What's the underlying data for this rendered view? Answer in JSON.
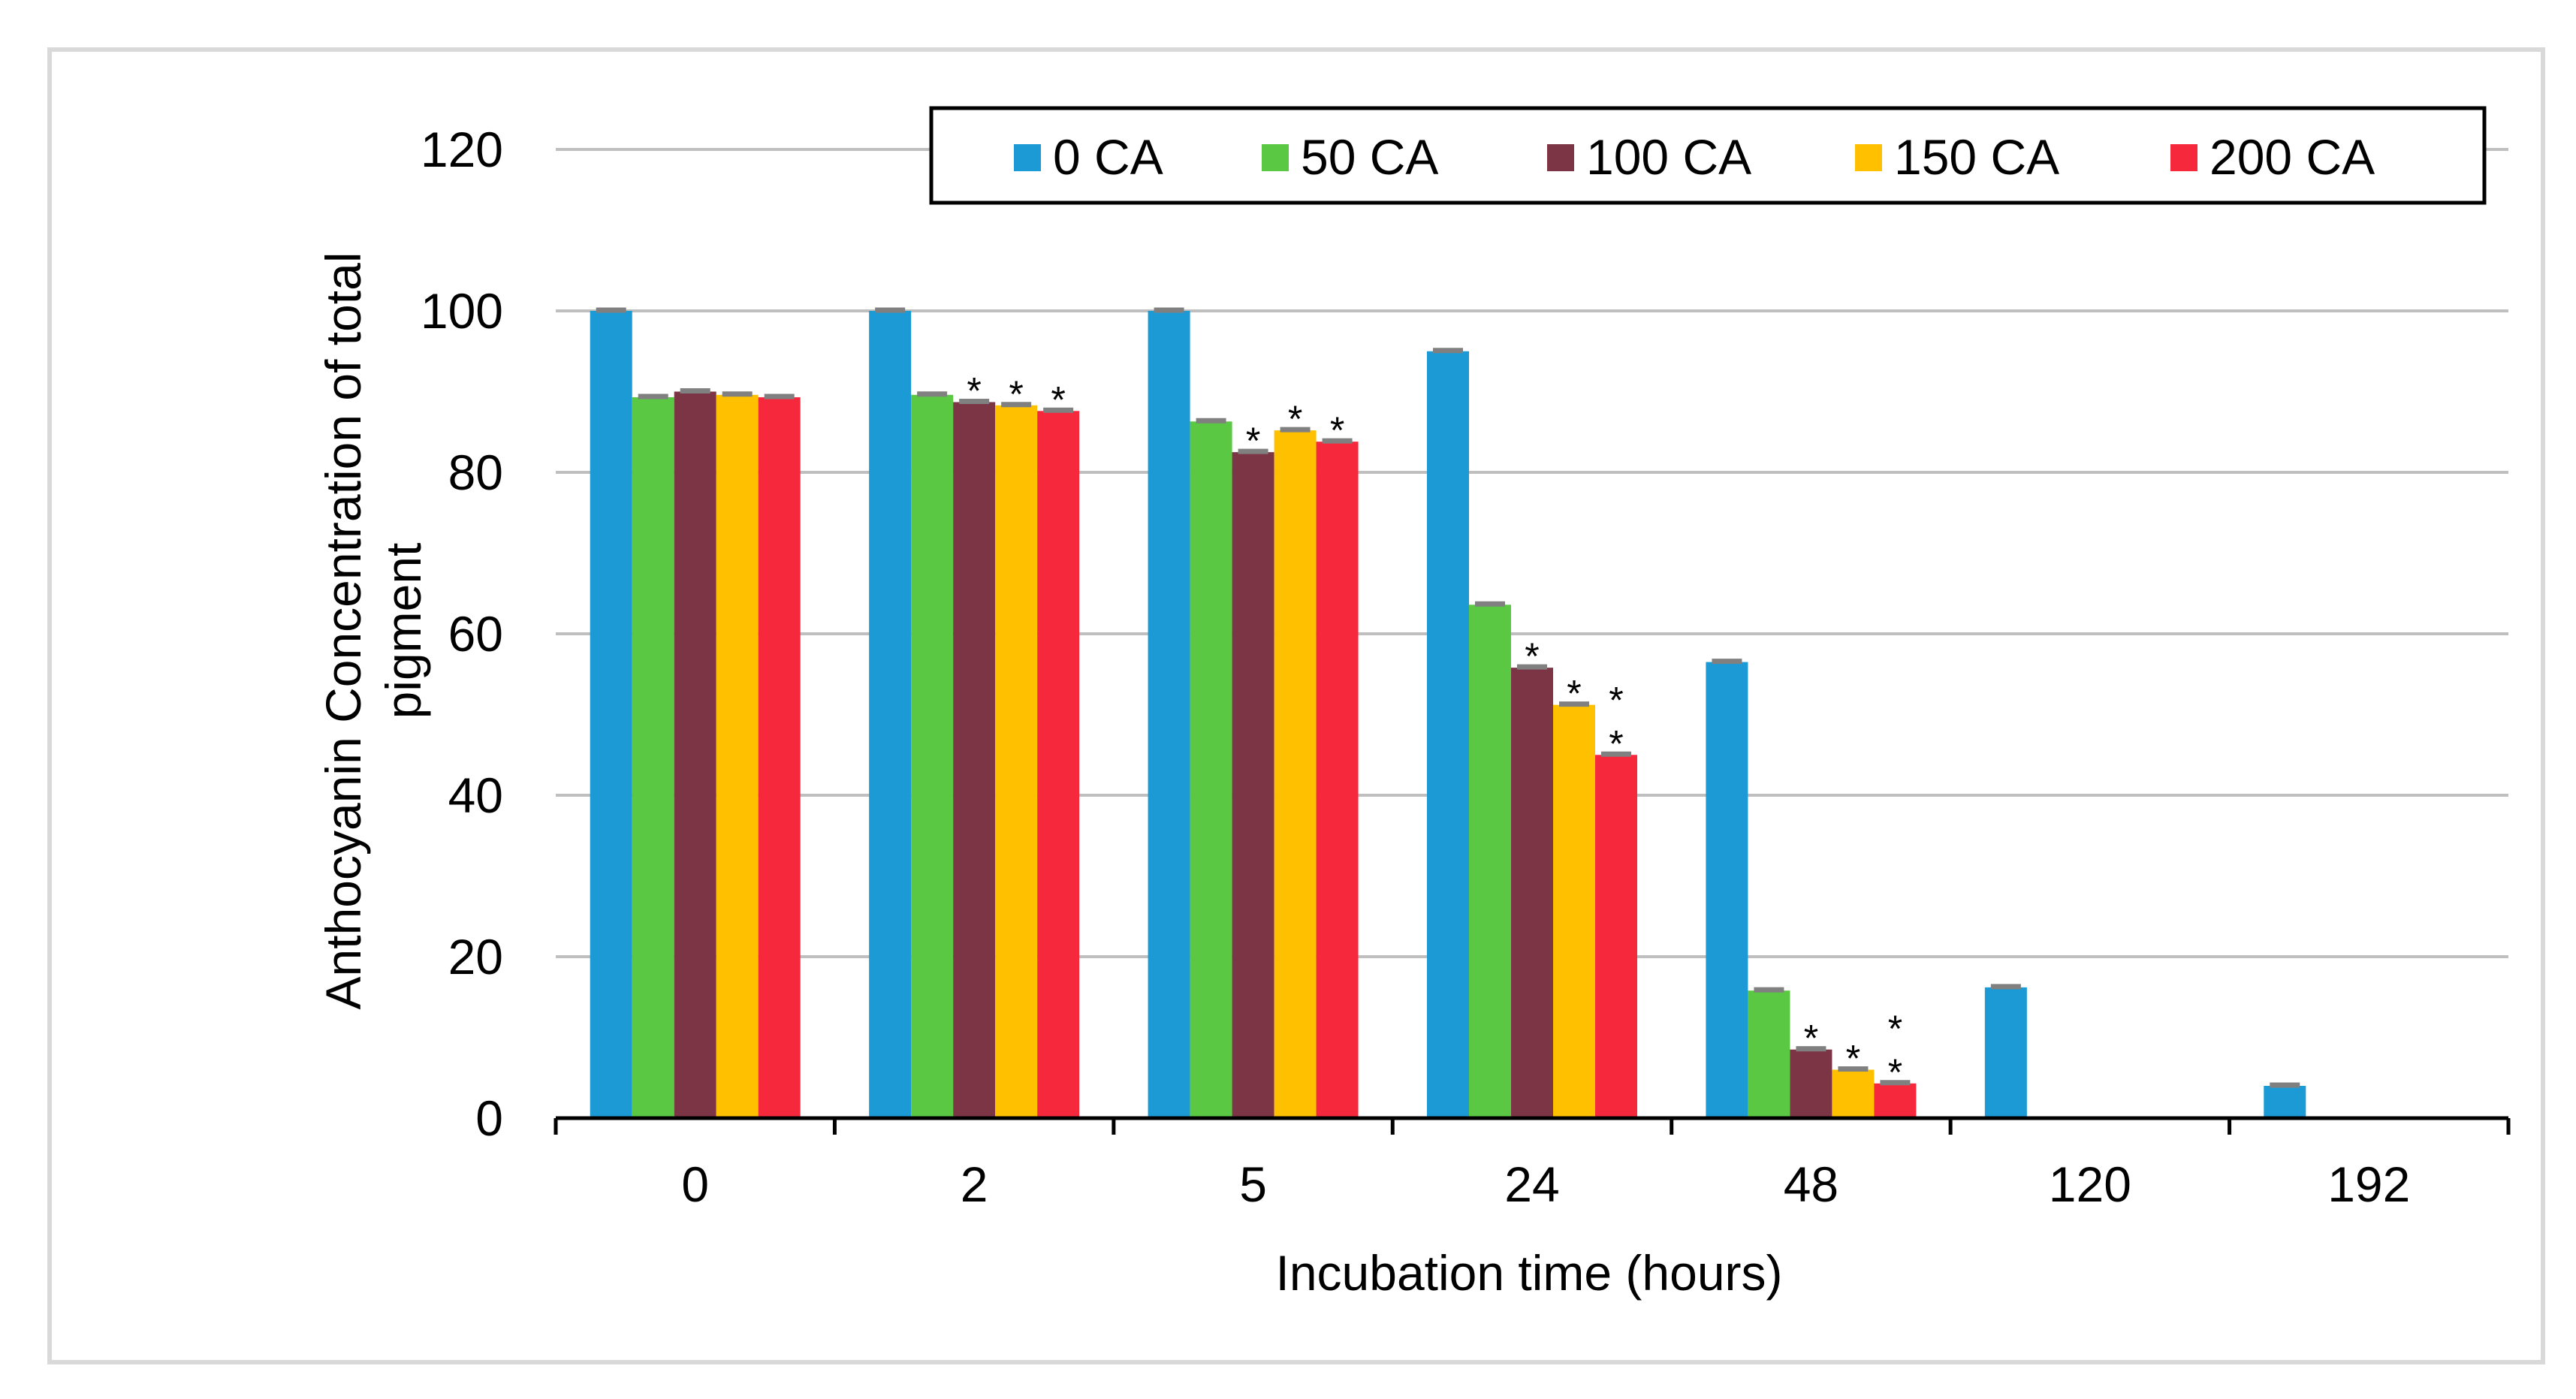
{
  "chart_data": {
    "type": "bar",
    "title": "",
    "xlabel": "Incubation time (hours)",
    "ylabel": "Anthocyanin Concentration of total pigment",
    "ylabel_lines": [
      "Anthocyanin Concentration of total",
      "pigment"
    ],
    "ylim": [
      0,
      120
    ],
    "yticks": [
      "0",
      "20",
      "40",
      "60",
      "80",
      "100",
      "120"
    ],
    "grid": true,
    "legend_position": "top-right",
    "categories": [
      "0",
      "2",
      "5",
      "24",
      "48",
      "120",
      "192"
    ],
    "series": [
      {
        "name": "0 CA",
        "color": "#1B9AD6",
        "values": [
          100,
          100,
          100,
          95,
          56.5,
          16.2,
          4
        ]
      },
      {
        "name": "50 CA",
        "color": "#5BC844",
        "values": [
          89.3,
          89.6,
          86.3,
          63.6,
          15.8,
          null,
          null
        ]
      },
      {
        "name": "100 CA",
        "color": "#7B3544",
        "values": [
          90,
          88.7,
          82.5,
          55.8,
          8.5,
          null,
          null
        ]
      },
      {
        "name": "150 CA",
        "color": "#FFC000",
        "values": [
          89.6,
          88.3,
          85.2,
          51.2,
          6,
          null,
          null
        ]
      },
      {
        "name": "200 CA",
        "color": "#F5283C",
        "values": [
          89.3,
          87.6,
          83.8,
          45,
          4.3,
          null,
          null
        ]
      }
    ],
    "annotations": [
      {
        "category": "2",
        "series": "100 CA",
        "text": "*"
      },
      {
        "category": "2",
        "series": "150 CA",
        "text": "*"
      },
      {
        "category": "2",
        "series": "200 CA",
        "text": "*"
      },
      {
        "category": "5",
        "series": "100 CA",
        "text": "*"
      },
      {
        "category": "5",
        "series": "150 CA",
        "text": "*"
      },
      {
        "category": "5",
        "series": "200 CA",
        "text": "*"
      },
      {
        "category": "24",
        "series": "100 CA",
        "text": "*"
      },
      {
        "category": "24",
        "series": "150 CA",
        "text": "*"
      },
      {
        "category": "24",
        "series": "200 CA",
        "text": "*"
      },
      {
        "category": "24",
        "series": "200 CA",
        "text": "*"
      },
      {
        "category": "48",
        "series": "100 CA",
        "text": "*"
      },
      {
        "category": "48",
        "series": "150 CA",
        "text": "*"
      },
      {
        "category": "48",
        "series": "200 CA",
        "text": "*"
      },
      {
        "category": "48",
        "series": "200 CA",
        "text": "*"
      }
    ],
    "error_bar_color": "#808080",
    "grid_color": "#BFBFBF",
    "frame_color": "#D9D9D9"
  }
}
